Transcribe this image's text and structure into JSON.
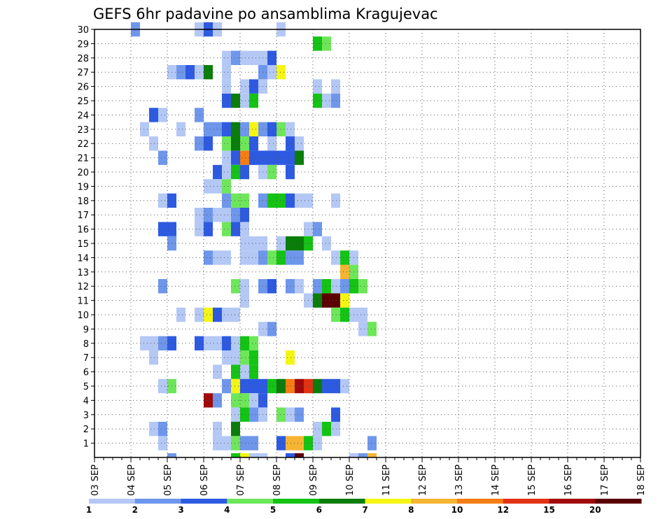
{
  "chart_data": {
    "type": "heatmap",
    "title": "GEFS 6hr padavine po ansamblima Kragujevac",
    "x_labels": [
      "03 SEP",
      "04 SEP",
      "05 SEP",
      "06 SEP",
      "07 SEP",
      "08 SEP",
      "09 SEP",
      "10 SEP",
      "11 SEP",
      "12 SEP",
      "13 SEP",
      "14 SEP",
      "15 SEP",
      "16 SEP",
      "17 SEP",
      "18 SEP"
    ],
    "y_labels": [
      "1",
      "2",
      "3",
      "4",
      "5",
      "6",
      "7",
      "8",
      "9",
      "10",
      "11",
      "12",
      "13",
      "14",
      "15",
      "16",
      "17",
      "18",
      "19",
      "20",
      "21",
      "22",
      "23",
      "24",
      "25",
      "26",
      "27",
      "28",
      "29",
      "30"
    ],
    "ylim": [
      0,
      30
    ],
    "grid": true,
    "colorbar": {
      "colors": [
        "#b4c8f5",
        "#6e96eb",
        "#2d5ae1",
        "#6ee65a",
        "#14c314",
        "#0a7d0a",
        "#f5f514",
        "#f5b432",
        "#f57d14",
        "#e13214",
        "#a00a0a",
        "#5a0000"
      ],
      "labels": [
        "1",
        "2",
        "3",
        "4",
        "5",
        "6",
        "7",
        "8",
        "10",
        "12",
        "15",
        "20"
      ]
    },
    "colormap_legend": "intensity levels 1..12 correspond to colorbar segments",
    "cells": [
      [
        4,
        30,
        2
      ],
      [
        11,
        30,
        1
      ],
      [
        12,
        30,
        3
      ],
      [
        13,
        30,
        1
      ],
      [
        20,
        30,
        1
      ],
      [
        24,
        29,
        5
      ],
      [
        25,
        29,
        4
      ],
      [
        14,
        28,
        1
      ],
      [
        15,
        28,
        2
      ],
      [
        16,
        28,
        1
      ],
      [
        17,
        28,
        1
      ],
      [
        18,
        28,
        1
      ],
      [
        19,
        28,
        3
      ],
      [
        8,
        27,
        1
      ],
      [
        9,
        27,
        2
      ],
      [
        10,
        27,
        3
      ],
      [
        11,
        27,
        1
      ],
      [
        12,
        27,
        6
      ],
      [
        14,
        27,
        1
      ],
      [
        18,
        27,
        2
      ],
      [
        19,
        27,
        1
      ],
      [
        20,
        27,
        7
      ],
      [
        14,
        26,
        1
      ],
      [
        16,
        26,
        1
      ],
      [
        17,
        26,
        3
      ],
      [
        18,
        26,
        1
      ],
      [
        24,
        26,
        1
      ],
      [
        26,
        26,
        1
      ],
      [
        14,
        25,
        3
      ],
      [
        15,
        25,
        6
      ],
      [
        16,
        25,
        1
      ],
      [
        17,
        25,
        5
      ],
      [
        24,
        25,
        5
      ],
      [
        25,
        25,
        1
      ],
      [
        26,
        25,
        2
      ],
      [
        6,
        24,
        3
      ],
      [
        7,
        24,
        1
      ],
      [
        11,
        24,
        2
      ],
      [
        5,
        23,
        1
      ],
      [
        9,
        23,
        1
      ],
      [
        12,
        23,
        2
      ],
      [
        13,
        23,
        2
      ],
      [
        14,
        23,
        3
      ],
      [
        15,
        23,
        6
      ],
      [
        16,
        23,
        2
      ],
      [
        17,
        23,
        7
      ],
      [
        18,
        23,
        2
      ],
      [
        19,
        23,
        3
      ],
      [
        20,
        23,
        4
      ],
      [
        21,
        23,
        1
      ],
      [
        6,
        22,
        1
      ],
      [
        11,
        22,
        2
      ],
      [
        12,
        22,
        3
      ],
      [
        14,
        22,
        4
      ],
      [
        15,
        22,
        6
      ],
      [
        16,
        22,
        4
      ],
      [
        17,
        22,
        3
      ],
      [
        19,
        22,
        1
      ],
      [
        21,
        22,
        3
      ],
      [
        22,
        22,
        1
      ],
      [
        7,
        21,
        2
      ],
      [
        14,
        21,
        1
      ],
      [
        15,
        21,
        3
      ],
      [
        16,
        21,
        9
      ],
      [
        17,
        21,
        3
      ],
      [
        18,
        21,
        3
      ],
      [
        19,
        21,
        3
      ],
      [
        20,
        21,
        3
      ],
      [
        21,
        21,
        3
      ],
      [
        22,
        21,
        6
      ],
      [
        13,
        20,
        3
      ],
      [
        14,
        20,
        1
      ],
      [
        15,
        20,
        5
      ],
      [
        16,
        20,
        3
      ],
      [
        18,
        20,
        1
      ],
      [
        19,
        20,
        4
      ],
      [
        21,
        20,
        3
      ],
      [
        12,
        19,
        1
      ],
      [
        13,
        19,
        1
      ],
      [
        14,
        19,
        4
      ],
      [
        7,
        18,
        1
      ],
      [
        8,
        18,
        3
      ],
      [
        14,
        18,
        2
      ],
      [
        15,
        18,
        4
      ],
      [
        16,
        18,
        4
      ],
      [
        18,
        18,
        2
      ],
      [
        19,
        18,
        5
      ],
      [
        20,
        18,
        5
      ],
      [
        21,
        18,
        3
      ],
      [
        22,
        18,
        1
      ],
      [
        23,
        18,
        1
      ],
      [
        26,
        18,
        1
      ],
      [
        11,
        17,
        1
      ],
      [
        12,
        17,
        2
      ],
      [
        13,
        17,
        1
      ],
      [
        14,
        17,
        1
      ],
      [
        15,
        17,
        2
      ],
      [
        16,
        17,
        3
      ],
      [
        7,
        16,
        3
      ],
      [
        8,
        16,
        3
      ],
      [
        11,
        16,
        1
      ],
      [
        12,
        16,
        3
      ],
      [
        14,
        16,
        4
      ],
      [
        15,
        16,
        3
      ],
      [
        16,
        16,
        1
      ],
      [
        23,
        16,
        1
      ],
      [
        24,
        16,
        2
      ],
      [
        8,
        15,
        2
      ],
      [
        16,
        15,
        1
      ],
      [
        17,
        15,
        1
      ],
      [
        18,
        15,
        1
      ],
      [
        20,
        15,
        1
      ],
      [
        21,
        15,
        6
      ],
      [
        22,
        15,
        6
      ],
      [
        23,
        15,
        5
      ],
      [
        25,
        15,
        1
      ],
      [
        12,
        14,
        2
      ],
      [
        13,
        14,
        1
      ],
      [
        14,
        14,
        1
      ],
      [
        16,
        14,
        1
      ],
      [
        17,
        14,
        1
      ],
      [
        18,
        14,
        2
      ],
      [
        19,
        14,
        4
      ],
      [
        20,
        14,
        5
      ],
      [
        21,
        14,
        2
      ],
      [
        22,
        14,
        2
      ],
      [
        26,
        14,
        1
      ],
      [
        27,
        14,
        5
      ],
      [
        28,
        14,
        1
      ],
      [
        27,
        13,
        8
      ],
      [
        28,
        13,
        4
      ],
      [
        7,
        12,
        2
      ],
      [
        15,
        12,
        4
      ],
      [
        16,
        12,
        1
      ],
      [
        18,
        12,
        2
      ],
      [
        19,
        12,
        3
      ],
      [
        21,
        12,
        2
      ],
      [
        22,
        12,
        1
      ],
      [
        24,
        12,
        2
      ],
      [
        25,
        12,
        5
      ],
      [
        26,
        12,
        1
      ],
      [
        27,
        12,
        2
      ],
      [
        28,
        12,
        5
      ],
      [
        29,
        12,
        4
      ],
      [
        16,
        11,
        1
      ],
      [
        23,
        11,
        1
      ],
      [
        24,
        11,
        6
      ],
      [
        25,
        11,
        12
      ],
      [
        26,
        11,
        12
      ],
      [
        27,
        11,
        7
      ],
      [
        9,
        10,
        1
      ],
      [
        11,
        10,
        1
      ],
      [
        12,
        10,
        7
      ],
      [
        13,
        10,
        3
      ],
      [
        14,
        10,
        1
      ],
      [
        15,
        10,
        1
      ],
      [
        26,
        10,
        4
      ],
      [
        27,
        10,
        5
      ],
      [
        28,
        10,
        1
      ],
      [
        29,
        10,
        1
      ],
      [
        18,
        9,
        1
      ],
      [
        19,
        9,
        2
      ],
      [
        29,
        9,
        1
      ],
      [
        30,
        9,
        4
      ],
      [
        5,
        8,
        1
      ],
      [
        6,
        8,
        1
      ],
      [
        7,
        8,
        2
      ],
      [
        8,
        8,
        3
      ],
      [
        11,
        8,
        3
      ],
      [
        12,
        8,
        1
      ],
      [
        13,
        8,
        1
      ],
      [
        14,
        8,
        3
      ],
      [
        15,
        8,
        1
      ],
      [
        16,
        8,
        5
      ],
      [
        17,
        8,
        4
      ],
      [
        6,
        7,
        1
      ],
      [
        14,
        7,
        1
      ],
      [
        15,
        7,
        1
      ],
      [
        16,
        7,
        4
      ],
      [
        17,
        7,
        5
      ],
      [
        21,
        7,
        7
      ],
      [
        13,
        6,
        1
      ],
      [
        15,
        6,
        5
      ],
      [
        16,
        6,
        1
      ],
      [
        17,
        6,
        5
      ],
      [
        7,
        5,
        1
      ],
      [
        8,
        5,
        4
      ],
      [
        14,
        5,
        2
      ],
      [
        15,
        5,
        7
      ],
      [
        16,
        5,
        3
      ],
      [
        17,
        5,
        3
      ],
      [
        18,
        5,
        3
      ],
      [
        19,
        5,
        5
      ],
      [
        20,
        5,
        6
      ],
      [
        21,
        5,
        9
      ],
      [
        22,
        5,
        11
      ],
      [
        23,
        5,
        10
      ],
      [
        24,
        5,
        6
      ],
      [
        25,
        5,
        3
      ],
      [
        26,
        5,
        3
      ],
      [
        27,
        5,
        1
      ],
      [
        12,
        4,
        11
      ],
      [
        13,
        4,
        2
      ],
      [
        15,
        4,
        4
      ],
      [
        16,
        4,
        4
      ],
      [
        17,
        4,
        1
      ],
      [
        18,
        4,
        3
      ],
      [
        15,
        3,
        1
      ],
      [
        16,
        3,
        5
      ],
      [
        17,
        3,
        2
      ],
      [
        18,
        3,
        1
      ],
      [
        20,
        3,
        4
      ],
      [
        21,
        3,
        1
      ],
      [
        22,
        3,
        2
      ],
      [
        26,
        3,
        3
      ],
      [
        6,
        2,
        1
      ],
      [
        7,
        2,
        2
      ],
      [
        13,
        2,
        1
      ],
      [
        15,
        2,
        6
      ],
      [
        24,
        2,
        1
      ],
      [
        25,
        2,
        5
      ],
      [
        26,
        2,
        1
      ],
      [
        7,
        1,
        1
      ],
      [
        13,
        1,
        1
      ],
      [
        14,
        1,
        1
      ],
      [
        15,
        1,
        4
      ],
      [
        16,
        1,
        2
      ],
      [
        17,
        1,
        2
      ],
      [
        20,
        1,
        3
      ],
      [
        21,
        1,
        8
      ],
      [
        22,
        1,
        8
      ],
      [
        23,
        1,
        5
      ],
      [
        24,
        1,
        1
      ],
      [
        30,
        1,
        2
      ],
      [
        8,
        0,
        2
      ],
      [
        15,
        0,
        5
      ],
      [
        16,
        0,
        7
      ],
      [
        17,
        0,
        1
      ],
      [
        18,
        0,
        1
      ],
      [
        21,
        0,
        3
      ],
      [
        22,
        0,
        12
      ],
      [
        28,
        0,
        1
      ],
      [
        29,
        0,
        2
      ],
      [
        30,
        0,
        8
      ]
    ]
  }
}
